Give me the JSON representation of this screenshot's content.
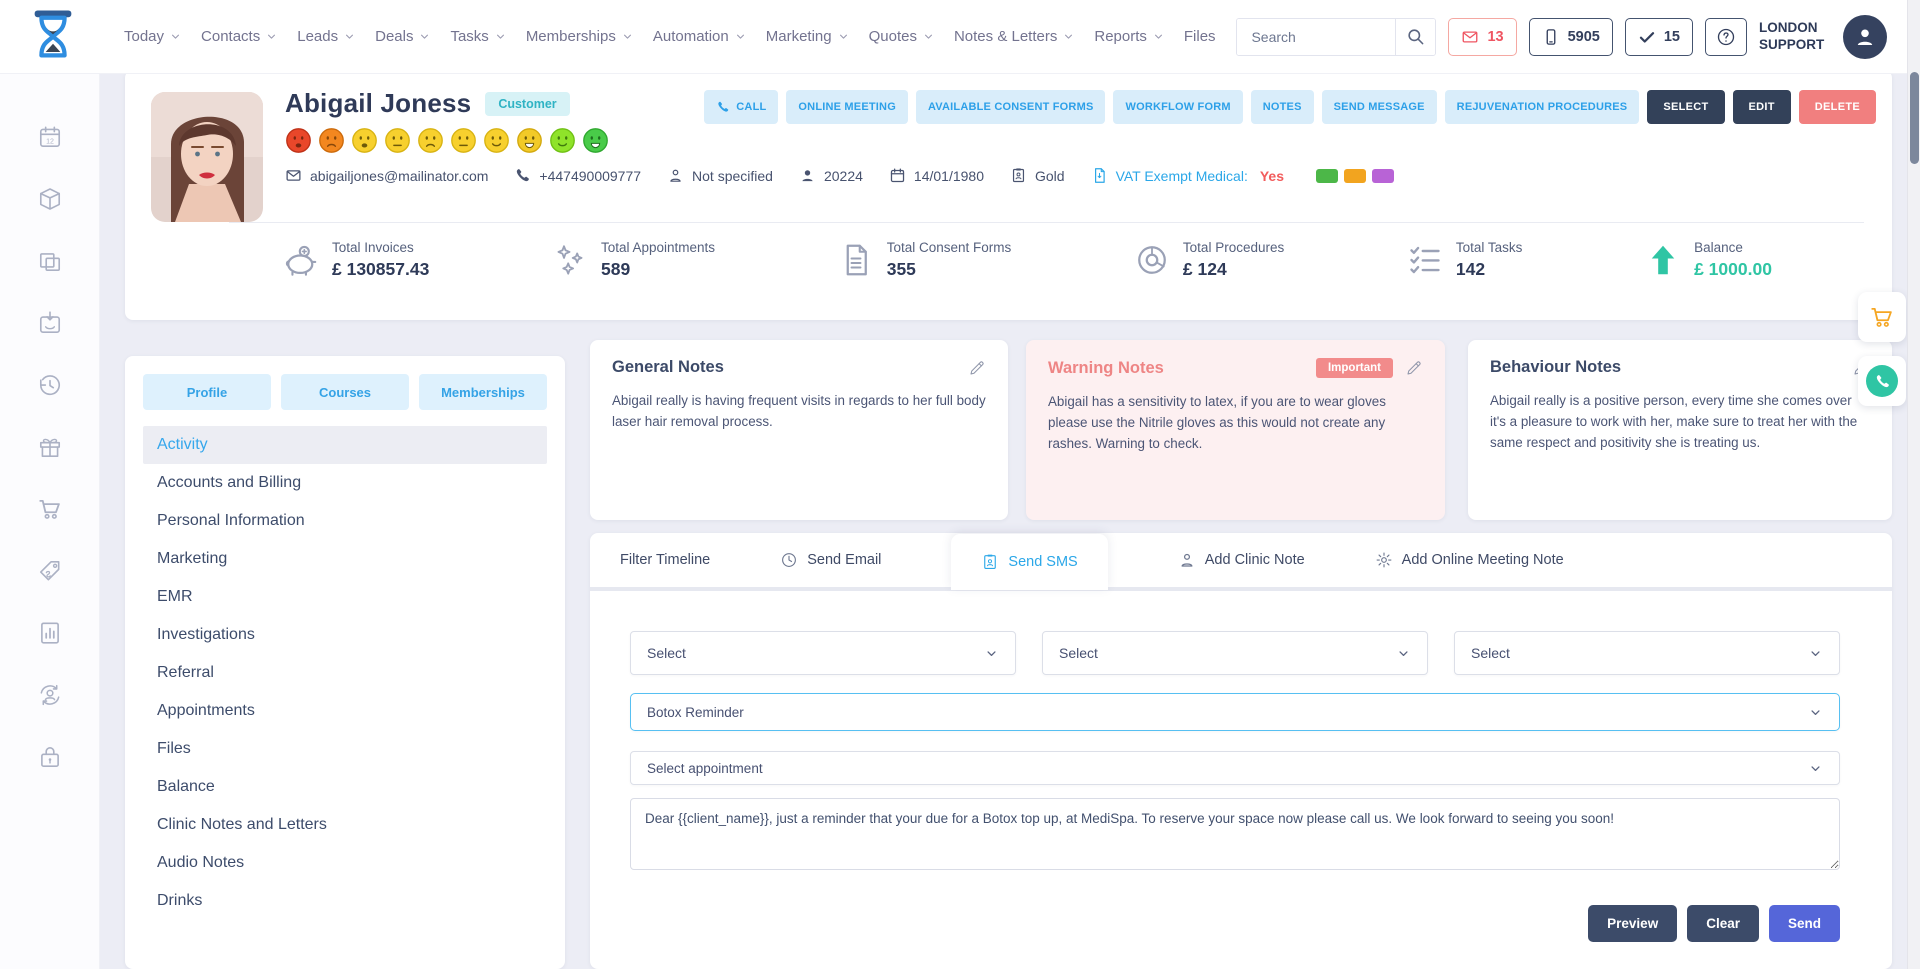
{
  "topnav": {
    "items": [
      {
        "label": "Today",
        "cls": "has-chev"
      },
      {
        "label": "Contacts",
        "cls": "has-chev"
      },
      {
        "label": "Leads",
        "cls": "has-chev"
      },
      {
        "label": "Deals",
        "cls": "has-chev"
      },
      {
        "label": "Tasks",
        "cls": "has-chev"
      },
      {
        "label": "Memberships",
        "cls": "has-chev"
      },
      {
        "label": "Automation",
        "cls": "has-chev"
      },
      {
        "label": "Marketing",
        "cls": "has-chev"
      },
      {
        "label": "Quotes",
        "cls": "has-chev"
      },
      {
        "label": "Notes & Letters",
        "cls": "has-chev"
      },
      {
        "label": "Reports",
        "cls": "has-chev"
      },
      {
        "label": "Files",
        "cls": ""
      }
    ],
    "search": {
      "placeholder": "Search"
    },
    "counters": [
      {
        "icon": "envelope",
        "value": "13",
        "style": "alert"
      },
      {
        "icon": "mobile",
        "value": "5905",
        "style": "default"
      },
      {
        "icon": "check",
        "value": "15",
        "style": "default"
      }
    ],
    "account": {
      "name": "LONDON SUPPORT"
    }
  },
  "sidebar": {
    "icons": [
      {
        "icon": "calendar"
      },
      {
        "icon": "package"
      },
      {
        "icon": "copy"
      },
      {
        "icon": "calendar-import"
      },
      {
        "icon": "history"
      },
      {
        "icon": "gift"
      },
      {
        "icon": "cart"
      },
      {
        "icon": "tag"
      },
      {
        "icon": "report"
      },
      {
        "icon": "user-sync"
      },
      {
        "icon": "lock"
      }
    ]
  },
  "customer": {
    "name": "Abigail Joness",
    "badge": "Customer",
    "moods": [
      {
        "color": "#e9472a",
        "mouth": "open-sad"
      },
      {
        "color": "#f3871f",
        "mouth": "sad"
      },
      {
        "color": "#f7d02e",
        "mouth": "open-sad"
      },
      {
        "color": "#f7d02e",
        "mouth": "neutral"
      },
      {
        "color": "#f7d02e",
        "mouth": "sad"
      },
      {
        "color": "#f7d02e",
        "mouth": "neutral"
      },
      {
        "color": "#f7d02e",
        "mouth": "smile"
      },
      {
        "color": "#f2ca28",
        "mouth": "grin"
      },
      {
        "color": "#8fe32a",
        "mouth": "smile"
      },
      {
        "color": "#49cb49",
        "mouth": "grin"
      }
    ],
    "contact": {
      "email": "abigailjones@mailinator.com",
      "phone": "+447490009777",
      "assigned": "Not specified",
      "client_id": "20224",
      "dob": "14/01/1980",
      "tier": "Gold",
      "vat_label": "VAT Exempt Medical:",
      "vat_value": "Yes"
    },
    "tags": [
      "#4cb748",
      "#f2a41f",
      "#b863d6"
    ],
    "actions": [
      {
        "label": "CALL",
        "icon": "phone"
      },
      {
        "label": "ONLINE MEETING"
      },
      {
        "label": "AVAILABLE CONSENT FORMS"
      },
      {
        "label": "WORKFLOW FORM"
      },
      {
        "label": "NOTES"
      },
      {
        "label": "SEND MESSAGE"
      },
      {
        "label": "REJUVENATION PROCEDURES"
      }
    ],
    "manage": [
      {
        "label": "SELECT",
        "style": "dark"
      },
      {
        "label": "EDIT",
        "style": "dark"
      },
      {
        "label": "DELETE",
        "style": "danger"
      }
    ]
  },
  "stats": [
    {
      "icon": "piggy",
      "label": "Total Invoices",
      "value": "£ 130857.43"
    },
    {
      "icon": "sparkles",
      "label": "Total Appointments",
      "value": "589"
    },
    {
      "icon": "doc",
      "label": "Total Consent Forms",
      "value": "355"
    },
    {
      "icon": "donut",
      "label": "Total Procedures",
      "value": "£ 124"
    },
    {
      "icon": "checklist",
      "label": "Total Tasks",
      "value": "142"
    },
    {
      "icon": "arrow-up",
      "label": "Balance",
      "value": "£ 1000.00",
      "style": "teal"
    }
  ],
  "panel": {
    "tabs": [
      {
        "label": "Profile"
      },
      {
        "label": "Courses"
      },
      {
        "label": "Memberships"
      }
    ],
    "items": [
      {
        "label": "Activity",
        "state": "active"
      },
      {
        "label": "Accounts and Billing"
      },
      {
        "label": "Personal Information"
      },
      {
        "label": "Marketing"
      },
      {
        "label": "EMR"
      },
      {
        "label": "Investigations"
      },
      {
        "label": "Referral"
      },
      {
        "label": "Appointments"
      },
      {
        "label": "Files"
      },
      {
        "label": "Balance"
      },
      {
        "label": "Clinic Notes and Letters"
      },
      {
        "label": "Audio Notes"
      },
      {
        "label": "Drinks"
      }
    ]
  },
  "notes": [
    {
      "title": "General Notes",
      "text": "Abigail really is having frequent visits in regards to her full body laser hair removal process."
    },
    {
      "title": "Warning Notes",
      "badge": "Important",
      "text": "Abigail has a sensitivity to latex, if you are to wear gloves please use the Nitrile gloves as this would not create any rashes. Warning to check."
    },
    {
      "title": "Behaviour Notes",
      "text": "Abigail really is a positive person, every time she comes over it's a pleasure to work with her, make sure to treat her with the same respect and positivity she is treating us."
    }
  ],
  "timeline": {
    "tabs": [
      {
        "label": "Filter Timeline"
      },
      {
        "label": "Send Email",
        "icon": "clock"
      },
      {
        "label": "Send SMS",
        "icon": "id-card",
        "state": "active"
      },
      {
        "label": "Add Clinic Note",
        "icon": "person"
      },
      {
        "label": "Add Online Meeting Note",
        "icon": "gear"
      }
    ],
    "filters": [
      {
        "value": "Select"
      },
      {
        "value": "Select"
      },
      {
        "value": "Select"
      }
    ],
    "template_value": "Botox Reminder",
    "appointment_value": "Select appointment",
    "message": "Dear {{client_name}}, just a reminder that your due for a Botox top up, at MediSpa. To reserve your space now please call us. We look forward to seeing you soon!",
    "buttons": {
      "preview": "Preview",
      "clear": "Clear",
      "send": "Send"
    }
  },
  "colors": {
    "accent_blue": "#2ba7e8",
    "navy": "#334159",
    "danger": "#f17f7f",
    "teal": "#2fc5a4",
    "send_button": "#5566d9",
    "warning_bg": "#fdf0f1"
  }
}
